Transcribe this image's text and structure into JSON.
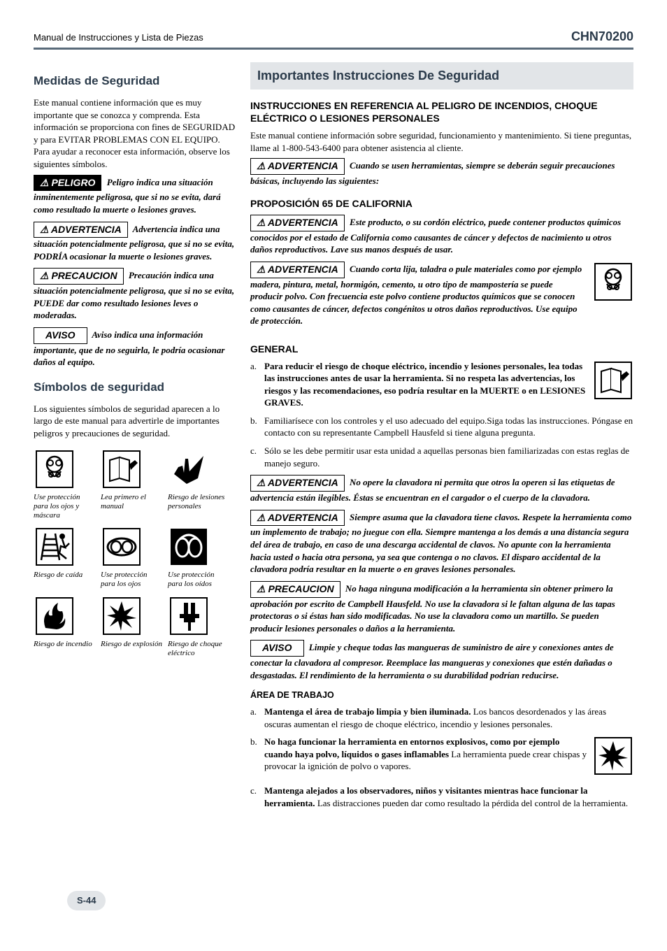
{
  "header": {
    "left": "Manual de Instrucciones y Lista de Piezas",
    "right": "CHN70200"
  },
  "colors": {
    "rule": "#5a6b7a",
    "bar_bg": "#e2e5e8",
    "title": "#2a3a4a"
  },
  "labels": {
    "peligro": "⚠ PELIGRO",
    "advertencia": "⚠ ADVERTENCIA",
    "precaucion": "⚠ PRECAUCION",
    "aviso": "AVISO"
  },
  "left": {
    "medidas_title": "Medidas de Seguridad",
    "medidas_intro": "Este manual contiene información que es muy importante que se conozca y comprenda. Esta información se proporciona con fines de SEGURIDAD y para EVITAR PROBLEMAS CON EL EQUIPO. Para ayudar a reconocer esta información, observe los siguientes símbolos.",
    "peligro_text": "Peligro indica una situación inminentemente peligrosa, que si no se evita, dará como resultado la muerte o lesiones graves.",
    "advert_text": "Advertencia indica una situación potencialmente peligrosa, que si no se evita, PODRÍA ocasionar la muerte o lesiones graves.",
    "precau_text": "Precaución indica una situación potencialmente peligrosa, que si no se evita, PUEDE dar como resultado lesiones leves o moderadas.",
    "aviso_text": "Aviso indica una información importante, que de no seguirla, le podría ocasionar daños al equipo.",
    "simbolos_title": "Símbolos de seguridad",
    "simbolos_intro": "Los siguientes símbolos de seguridad aparecen a lo largo de este manual para advertirle de importantes peligros y precauciones de seguridad.",
    "icons": [
      {
        "name": "mask-icon",
        "svg": "mask",
        "cap": "Use protección para los ojos y máscara"
      },
      {
        "name": "manual-icon",
        "svg": "manual",
        "cap": "Lea primero el manual"
      },
      {
        "name": "injury-icon",
        "svg": "hand",
        "cap": "Riesgo de lesiones personales"
      },
      {
        "name": "fall-icon",
        "svg": "ladder",
        "cap": "Riesgo de caída"
      },
      {
        "name": "goggles-icon",
        "svg": "goggles",
        "cap": "Use protección para los ojos"
      },
      {
        "name": "ear-icon",
        "svg": "ear",
        "cap": "Use protección para los oídos"
      },
      {
        "name": "fire-icon",
        "svg": "fire",
        "cap": "Riesgo de incendio"
      },
      {
        "name": "explosion-icon",
        "svg": "explosion",
        "cap": "Riesgo de explosión"
      },
      {
        "name": "shock-icon",
        "svg": "shock",
        "cap": "Riesgo de choque eléctrico"
      }
    ]
  },
  "right": {
    "imp_title": "Importantes Instrucciones De Seguridad",
    "sub1": "INSTRUCCIONES EN REFERENCIA AL PELIGRO DE INCENDIOS, CHOQUE ELÉCTRICO O LESIONES PERSONALES",
    "intro": "Este manual contiene información sobre seguridad, funcionamiento y mantenimiento. Si tiene preguntas, llame al 1-800-543-6400 para obtener asistencia al cliente.",
    "warn1": "Cuando se usen herramientas, siempre se deberán seguir precauciones básicas, incluyendo las siguientes:",
    "prop65_title": "PROPOSICIÓN 65 DE CALIFORNIA",
    "warn2": "Este producto, o su cordón eléctrico, puede contener productos químicos conocidos por el estado de California como causantes de cáncer y defectos de nacimiento u otros daños reproductivos. Lave sus manos después de usar.",
    "warn3": "Cuando corta lija, taladra o pule materiales como por ejemplo madera, pintura, metal, hormigón, cemento, u otro tipo de mampostería se puede producir polvo. Con frecuencia este polvo contiene productos químicos que se conocen como causantes de cáncer, defectos congénitos u otros daños reproductivos. Use equipo de protección.",
    "general_title": "GENERAL",
    "gen_a": "Para reducir el riesgo de choque eléctrico, incendio y lesiones personales, lea todas las instrucciones antes de usar la herramienta. Si no respeta las advertencias, los riesgos y las recomendaciones, eso podría resultar en la MUERTE o en LESIONES GRAVES.",
    "gen_b": "Familiarísece con los controles y el uso adecuado del equipo.Siga todas las instrucciones. Póngase en contacto con su representante Campbell Hausfeld si tiene alguna pregunta.",
    "gen_c": "Sólo se les debe permitir usar esta unidad a aquellas personas bien familiarizadas con estas reglas de manejo seguro.",
    "warn4": "No opere la clavadora ni permita que otros la operen si las etiquetas de advertencia están ilegibles. Éstas se encuentran en el cargador o el cuerpo de la clavadora.",
    "warn5": "Siempre asuma que la clavadora tiene clavos. Respete la herramienta como un implemento de trabajo; no juegue con ella. Siempre mantenga a los demás a una distancia segura del área de trabajo, en caso de una descarga accidental de clavos. No apunte con la herramienta hacia usted o hacia otra persona, ya sea que contenga o no clavos. El disparo accidental de la clavadora podría resultar en la muerte o en graves lesiones personales.",
    "prec1": "No haga ninguna modificación a la herramienta sin obtener primero la aprobación por escrito de Campbell Hausfeld. No use la clavadora si le faltan alguna de las tapas protectoras o si éstas han sido modificadas. No use la clavadora como un martillo. Se pueden producir lesiones personales o daños a la herramienta.",
    "aviso1": "Limpie y cheque todas las mangueras de suministro de aire y conexiones antes de conectar la clavadora al compresor. Reemplace las mangueras y conexiones que estén dañadas o desgastadas. El rendimiento de la herramienta o su durabilidad podrían reducirse.",
    "area_title": "ÁREA DE TRABAJO",
    "area_a_bold": "Mantenga el área de trabajo limpia y bien iluminada.",
    "area_a_rest": " Los bancos desordenados y las áreas oscuras aumentan el riesgo de choque eléctrico, incendio y lesiones personales.",
    "area_b_bold": "No haga funcionar la herramienta en entornos explosivos, como por ejemplo cuando haya polvo, líquidos o gases inflamables",
    "area_b_rest": " La herramienta puede crear chispas y provocar la ignición de polvo o vapores.",
    "area_c_bold": "Mantenga alejados a los observadores, niños y visitantes mientras hace funcionar la herramienta.",
    "area_c_rest": " Las distracciones pueden dar como resultado la pérdida del control de la herramienta."
  },
  "page_num": "S-44"
}
